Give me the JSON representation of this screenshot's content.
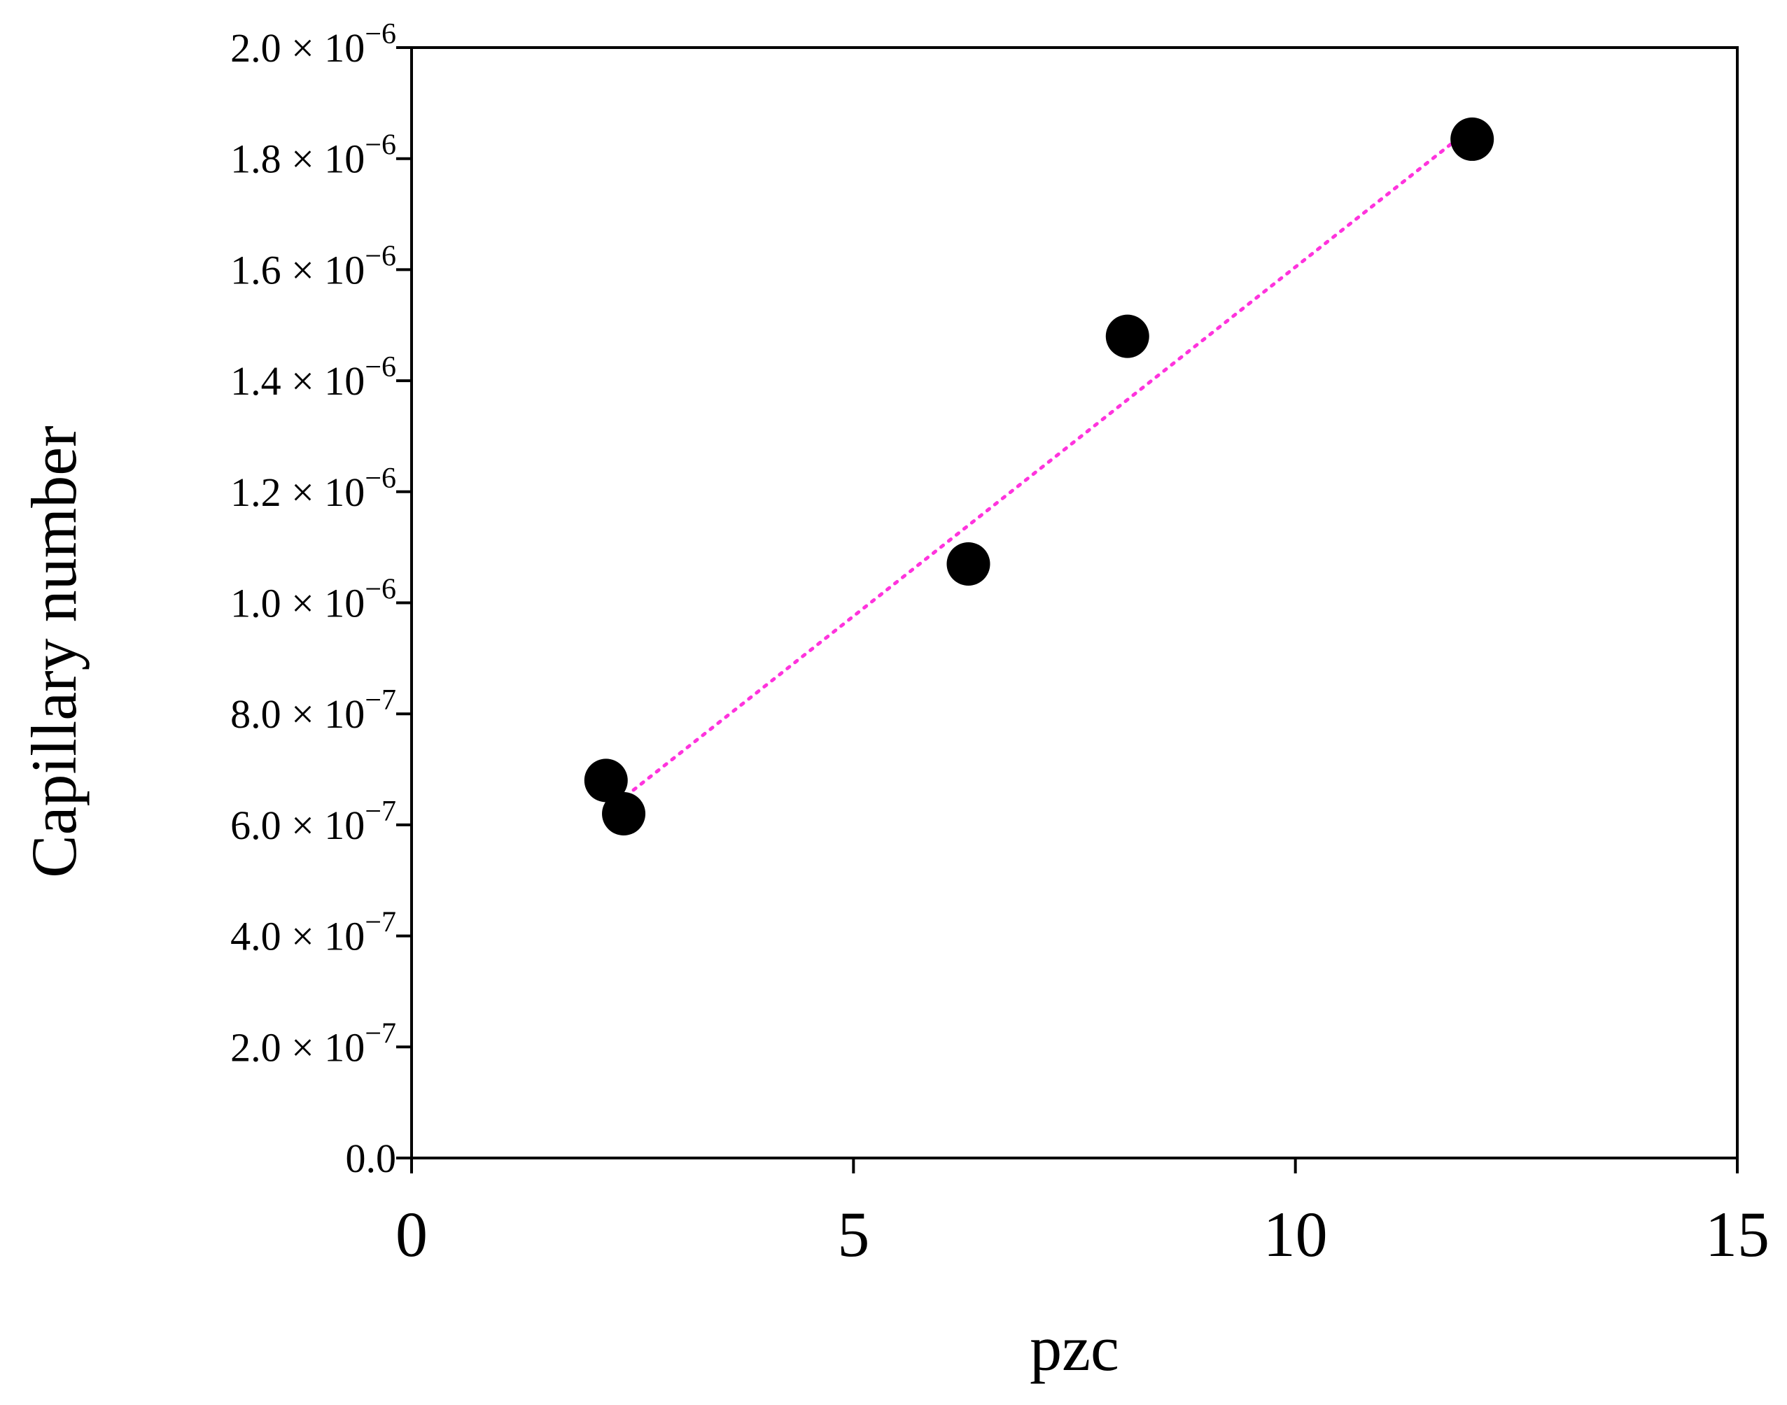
{
  "chart_data": {
    "type": "scatter",
    "title": "",
    "xlabel": "pzc",
    "ylabel": "Capillary number",
    "xlim": [
      0,
      15
    ],
    "ylim": [
      0,
      2e-06
    ],
    "x_ticks": [
      0,
      5,
      10,
      15
    ],
    "x_tick_labels": [
      "0",
      "5",
      "10",
      "15"
    ],
    "y_ticks": [
      0,
      2e-07,
      4e-07,
      6e-07,
      8e-07,
      1e-06,
      1.2e-06,
      1.4e-06,
      1.6e-06,
      1.8e-06,
      2e-06
    ],
    "y_tick_labels": [
      {
        "mantissa": "0.0",
        "exponent": ""
      },
      {
        "mantissa": "2.0",
        "exponent": "−7"
      },
      {
        "mantissa": "4.0",
        "exponent": "−7"
      },
      {
        "mantissa": "6.0",
        "exponent": "−7"
      },
      {
        "mantissa": "8.0",
        "exponent": "−7"
      },
      {
        "mantissa": "1.0",
        "exponent": "−6"
      },
      {
        "mantissa": "1.2",
        "exponent": "−6"
      },
      {
        "mantissa": "1.4",
        "exponent": "−6"
      },
      {
        "mantissa": "1.6",
        "exponent": "−6"
      },
      {
        "mantissa": "1.8",
        "exponent": "−6"
      },
      {
        "mantissa": "2.0",
        "exponent": "−6"
      }
    ],
    "y_tick_times_symbol": "×",
    "y_tick_base": "10",
    "grid": false,
    "legend": "none",
    "series": [
      {
        "marker_color": "#000000",
        "points": [
          {
            "x": 2.2,
            "y": 6.8e-07
          },
          {
            "x": 2.4,
            "y": 6.2e-07
          },
          {
            "x": 6.3,
            "y": 1.07e-06
          },
          {
            "x": 8.1,
            "y": 1.48e-06
          },
          {
            "x": 12.0,
            "y": 1.835e-06
          }
        ]
      }
    ],
    "trendline": {
      "style": "dotted",
      "color": "#ff33dd",
      "x": [
        2.25,
        11.95
      ],
      "y": [
        6.3e-07,
        1.85e-06
      ]
    }
  }
}
